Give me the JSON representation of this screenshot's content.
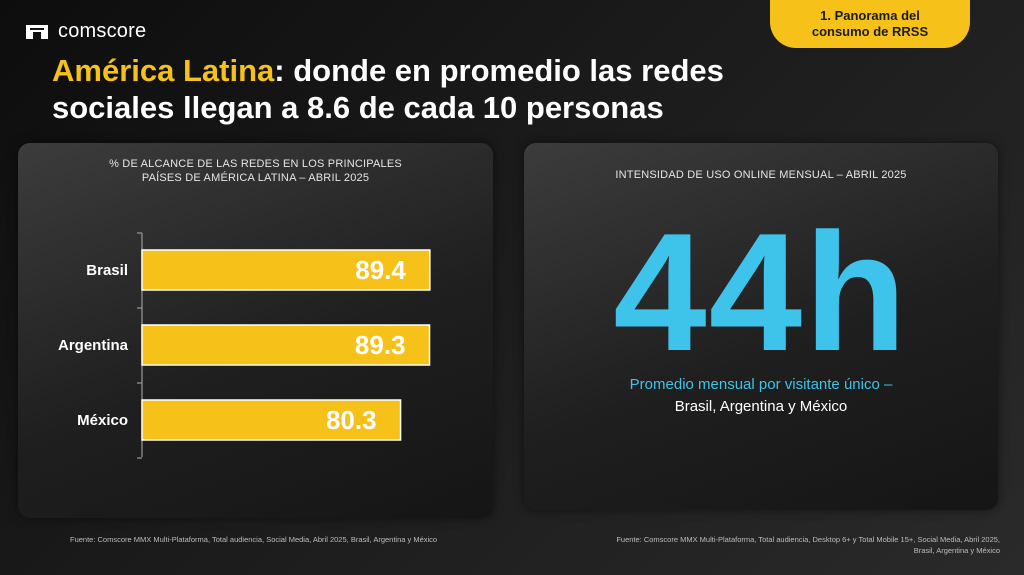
{
  "brand": {
    "logo_text": "comscore"
  },
  "tag": {
    "line1": "1. Panorama del",
    "line2": "consumo de RRSS"
  },
  "headline": {
    "highlight": "América Latina",
    "rest_line1": ": donde en promedio las redes",
    "line2": "sociales llegan a 8.6 de cada 10 personas"
  },
  "left_panel": {
    "title_line1": "% DE ALCANCE DE LAS REDES EN LOS PRINCIPALES",
    "title_line2": "PAÍSES DE AMÉRICA LATINA – ABRIL 2025"
  },
  "chart_data": {
    "type": "bar",
    "orientation": "horizontal",
    "title": "% DE ALCANCE DE LAS REDES EN LOS PRINCIPALES PAÍSES DE AMÉRICA LATINA – ABRIL 2025",
    "categories": [
      "Brasil",
      "Argentina",
      "México"
    ],
    "values": [
      89.4,
      89.3,
      80.3
    ],
    "xlim": [
      0,
      100
    ],
    "grid": false,
    "data_labels": true,
    "bar_color": "#f6c21a"
  },
  "right_panel": {
    "title": "INTENSIDAD DE USO ONLINE MENSUAL – ABRIL 2025",
    "big_value": "44h",
    "sub_line1": "Promedio mensual por visitante único –",
    "sub_line2": "Brasil, Argentina y México"
  },
  "sources": {
    "left": "Fuente: Comscore MMX Multi-Plataforma, Total audiencia, Social Media, Abril 2025, Brasil, Argentina y México",
    "right_line1": "Fuente: Comscore MMX Multi-Plataforma, Total audiencia, Desktop 6+ y Total Mobile 15+, Social Media, Abril 2025,",
    "right_line2": "Brasil, Argentina y México"
  },
  "colors": {
    "accent_yellow": "#f6c21a",
    "accent_blue": "#3ec3ea",
    "background": "#141414"
  }
}
